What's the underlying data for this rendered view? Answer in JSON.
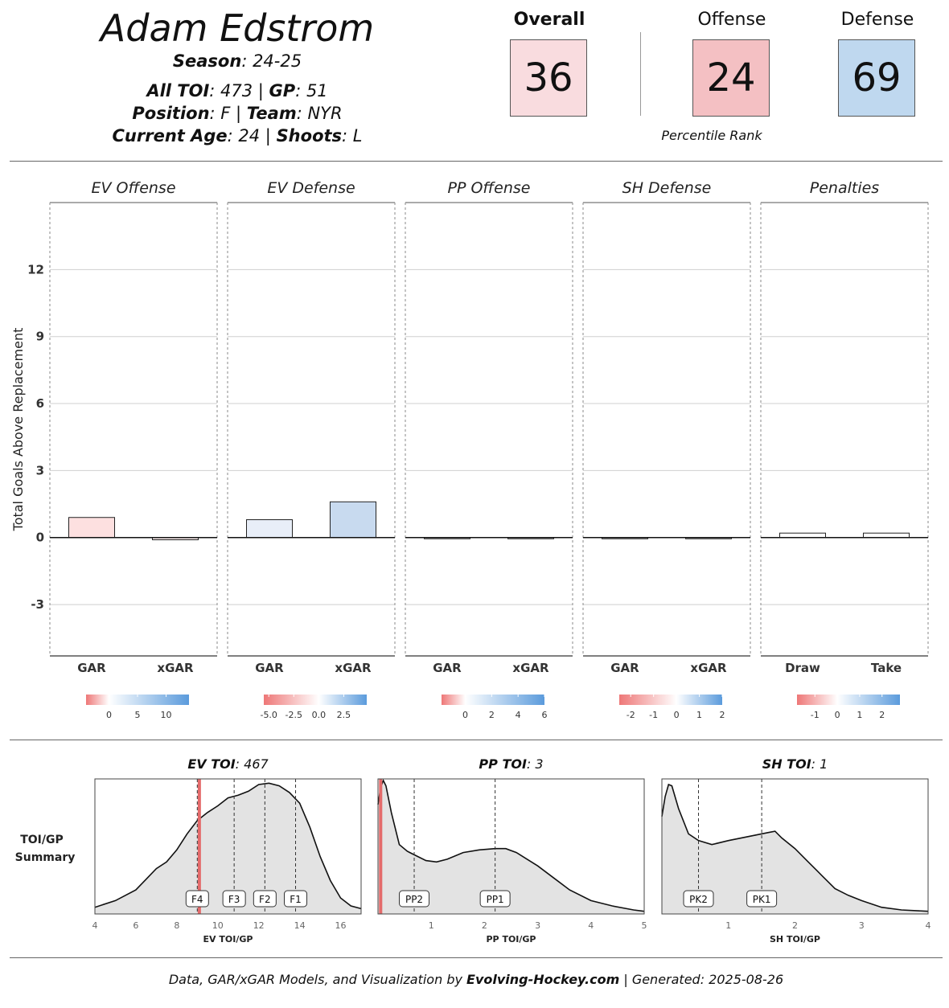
{
  "header": {
    "player_name": "Adam Edstrom",
    "season_label": "Season",
    "season_value": ": 24-25",
    "toi_label": "All TOI",
    "toi_value": ": 473 | ",
    "gp_label": "GP",
    "gp_value": ": 51",
    "position_label": "Position",
    "position_value": ": F | ",
    "team_label": "Team",
    "team_value": ": NYR",
    "age_label": "Current Age",
    "age_value": ": 24 | ",
    "shoots_label": "Shoots",
    "shoots_value": ": L"
  },
  "percentiles": {
    "overall_label": "Overall",
    "overall_value": "36",
    "overall_color": "#f9dcdf",
    "offense_label": "Offense",
    "offense_value": "24",
    "offense_color": "#f4c0c3",
    "defense_label": "Defense",
    "defense_value": "69",
    "defense_color": "#bfd8ef",
    "caption": "Percentile Rank"
  },
  "chart_data": [
    {
      "type": "bar",
      "ylabel": "Total Goals Above Replacement",
      "yticks": [
        -3,
        0,
        3,
        6,
        9,
        12
      ],
      "ylim": [
        -5.3,
        15
      ],
      "grid": true,
      "panels": [
        {
          "title": "EV Offense",
          "categories": [
            "GAR",
            "xGAR"
          ],
          "values": [
            0.9,
            -0.1
          ],
          "colors": [
            "#fde0e0",
            "#fff1f1"
          ],
          "colorbar": {
            "ticks": [
              "0",
              "5",
              "10"
            ],
            "tick_values": [
              0,
              5,
              10
            ],
            "range": [
              -4,
              14
            ]
          }
        },
        {
          "title": "EV Defense",
          "categories": [
            "GAR",
            "xGAR"
          ],
          "values": [
            0.8,
            1.6
          ],
          "colors": [
            "#e8eef8",
            "#c8daef"
          ],
          "colorbar": {
            "ticks": [
              "-5.0",
              "-2.5",
              "0.0",
              "2.5"
            ],
            "tick_values": [
              -5,
              -2.5,
              0,
              2.5
            ],
            "range": [
              -5.5,
              4.8
            ]
          }
        },
        {
          "title": "PP Offense",
          "categories": [
            "GAR",
            "xGAR"
          ],
          "values": [
            0.0,
            0.0
          ],
          "colors": [
            "#ffffff",
            "#ffffff"
          ],
          "colorbar": {
            "ticks": [
              "0",
              "2",
              "4",
              "6"
            ],
            "tick_values": [
              0,
              2,
              4,
              6
            ],
            "range": [
              -1.8,
              6
            ]
          }
        },
        {
          "title": "SH Defense",
          "categories": [
            "GAR",
            "xGAR"
          ],
          "values": [
            0.0,
            0.0
          ],
          "colors": [
            "#ffffff",
            "#ffffff"
          ],
          "colorbar": {
            "ticks": [
              "-2",
              "-1",
              "0",
              "1",
              "2"
            ],
            "tick_values": [
              -2,
              -1,
              0,
              1,
              2
            ],
            "range": [
              -2.5,
              2
            ]
          }
        },
        {
          "title": "Penalties",
          "categories": [
            "Draw",
            "Take"
          ],
          "values": [
            0.2,
            0.2
          ],
          "colors": [
            "#ffffff",
            "#ffffff"
          ],
          "colorbar": {
            "ticks": [
              "-1",
              "0",
              "1",
              "2"
            ],
            "tick_values": [
              -1,
              0,
              1,
              2
            ],
            "range": [
              -1.8,
              2.8
            ]
          }
        }
      ]
    },
    {
      "type": "area",
      "row_label": [
        "TOI/GP",
        "Summary"
      ],
      "panels": [
        {
          "title_label": "EV TOI",
          "title_value": ": 467",
          "xlabel": "EV TOI/GP",
          "xlim": [
            4,
            17
          ],
          "xticks": [
            4,
            6,
            8,
            10,
            12,
            14,
            16
          ],
          "player_value": 9.1,
          "markers": [
            {
              "label": "F4",
              "x": 9.0
            },
            {
              "label": "F3",
              "x": 10.8
            },
            {
              "label": "F2",
              "x": 12.3
            },
            {
              "label": "F1",
              "x": 13.8
            }
          ],
          "density": [
            [
              4,
              0.05
            ],
            [
              5,
              0.1
            ],
            [
              6,
              0.18
            ],
            [
              6.5,
              0.26
            ],
            [
              7,
              0.34
            ],
            [
              7.5,
              0.39
            ],
            [
              8,
              0.48
            ],
            [
              8.5,
              0.6
            ],
            [
              9,
              0.7
            ],
            [
              9.5,
              0.76
            ],
            [
              10,
              0.81
            ],
            [
              10.5,
              0.87
            ],
            [
              11,
              0.89
            ],
            [
              11.5,
              0.92
            ],
            [
              12,
              0.97
            ],
            [
              12.5,
              0.98
            ],
            [
              13,
              0.96
            ],
            [
              13.5,
              0.91
            ],
            [
              14,
              0.83
            ],
            [
              14.5,
              0.65
            ],
            [
              15,
              0.43
            ],
            [
              15.5,
              0.25
            ],
            [
              16,
              0.12
            ],
            [
              16.5,
              0.06
            ],
            [
              17,
              0.04
            ]
          ]
        },
        {
          "title_label": "PP TOI",
          "title_value": ": 3",
          "xlabel": "PP TOI/GP",
          "xlim": [
            0,
            5
          ],
          "xticks": [
            1,
            2,
            3,
            4,
            5
          ],
          "player_value": 0.05,
          "markers": [
            {
              "label": "PP2",
              "x": 0.68
            },
            {
              "label": "PP1",
              "x": 2.2
            }
          ],
          "density": [
            [
              0,
              0.82
            ],
            [
              0.05,
              0.95
            ],
            [
              0.1,
              1.0
            ],
            [
              0.15,
              0.96
            ],
            [
              0.25,
              0.76
            ],
            [
              0.4,
              0.52
            ],
            [
              0.55,
              0.47
            ],
            [
              0.7,
              0.44
            ],
            [
              0.9,
              0.4
            ],
            [
              1.1,
              0.39
            ],
            [
              1.3,
              0.41
            ],
            [
              1.6,
              0.46
            ],
            [
              1.9,
              0.48
            ],
            [
              2.2,
              0.49
            ],
            [
              2.4,
              0.49
            ],
            [
              2.6,
              0.46
            ],
            [
              2.8,
              0.41
            ],
            [
              3.0,
              0.36
            ],
            [
              3.3,
              0.27
            ],
            [
              3.6,
              0.18
            ],
            [
              4.0,
              0.1
            ],
            [
              4.4,
              0.06
            ],
            [
              4.8,
              0.03
            ],
            [
              5,
              0.02
            ]
          ]
        },
        {
          "title_label": "SH TOI",
          "title_value": ": 1",
          "xlabel": "SH TOI/GP",
          "xlim": [
            0,
            4
          ],
          "xticks": [
            1,
            2,
            3,
            4
          ],
          "player_value": null,
          "markers": [
            {
              "label": "PK2",
              "x": 0.55
            },
            {
              "label": "PK1",
              "x": 1.5
            }
          ],
          "density": [
            [
              0,
              0.73
            ],
            [
              0.05,
              0.88
            ],
            [
              0.1,
              0.97
            ],
            [
              0.15,
              0.96
            ],
            [
              0.25,
              0.79
            ],
            [
              0.4,
              0.6
            ],
            [
              0.55,
              0.55
            ],
            [
              0.75,
              0.52
            ],
            [
              1.0,
              0.55
            ],
            [
              1.3,
              0.58
            ],
            [
              1.6,
              0.61
            ],
            [
              1.7,
              0.62
            ],
            [
              1.8,
              0.57
            ],
            [
              2.0,
              0.49
            ],
            [
              2.2,
              0.39
            ],
            [
              2.4,
              0.29
            ],
            [
              2.6,
              0.19
            ],
            [
              2.8,
              0.14
            ],
            [
              3.0,
              0.1
            ],
            [
              3.3,
              0.05
            ],
            [
              3.6,
              0.03
            ],
            [
              4,
              0.02
            ]
          ]
        }
      ]
    }
  ],
  "footer": {
    "text_a": "Data, GAR/xGAR Models, and Visualization by ",
    "brand": "Evolving-Hockey.com",
    "text_b": " | Generated: 2025-08-26"
  }
}
